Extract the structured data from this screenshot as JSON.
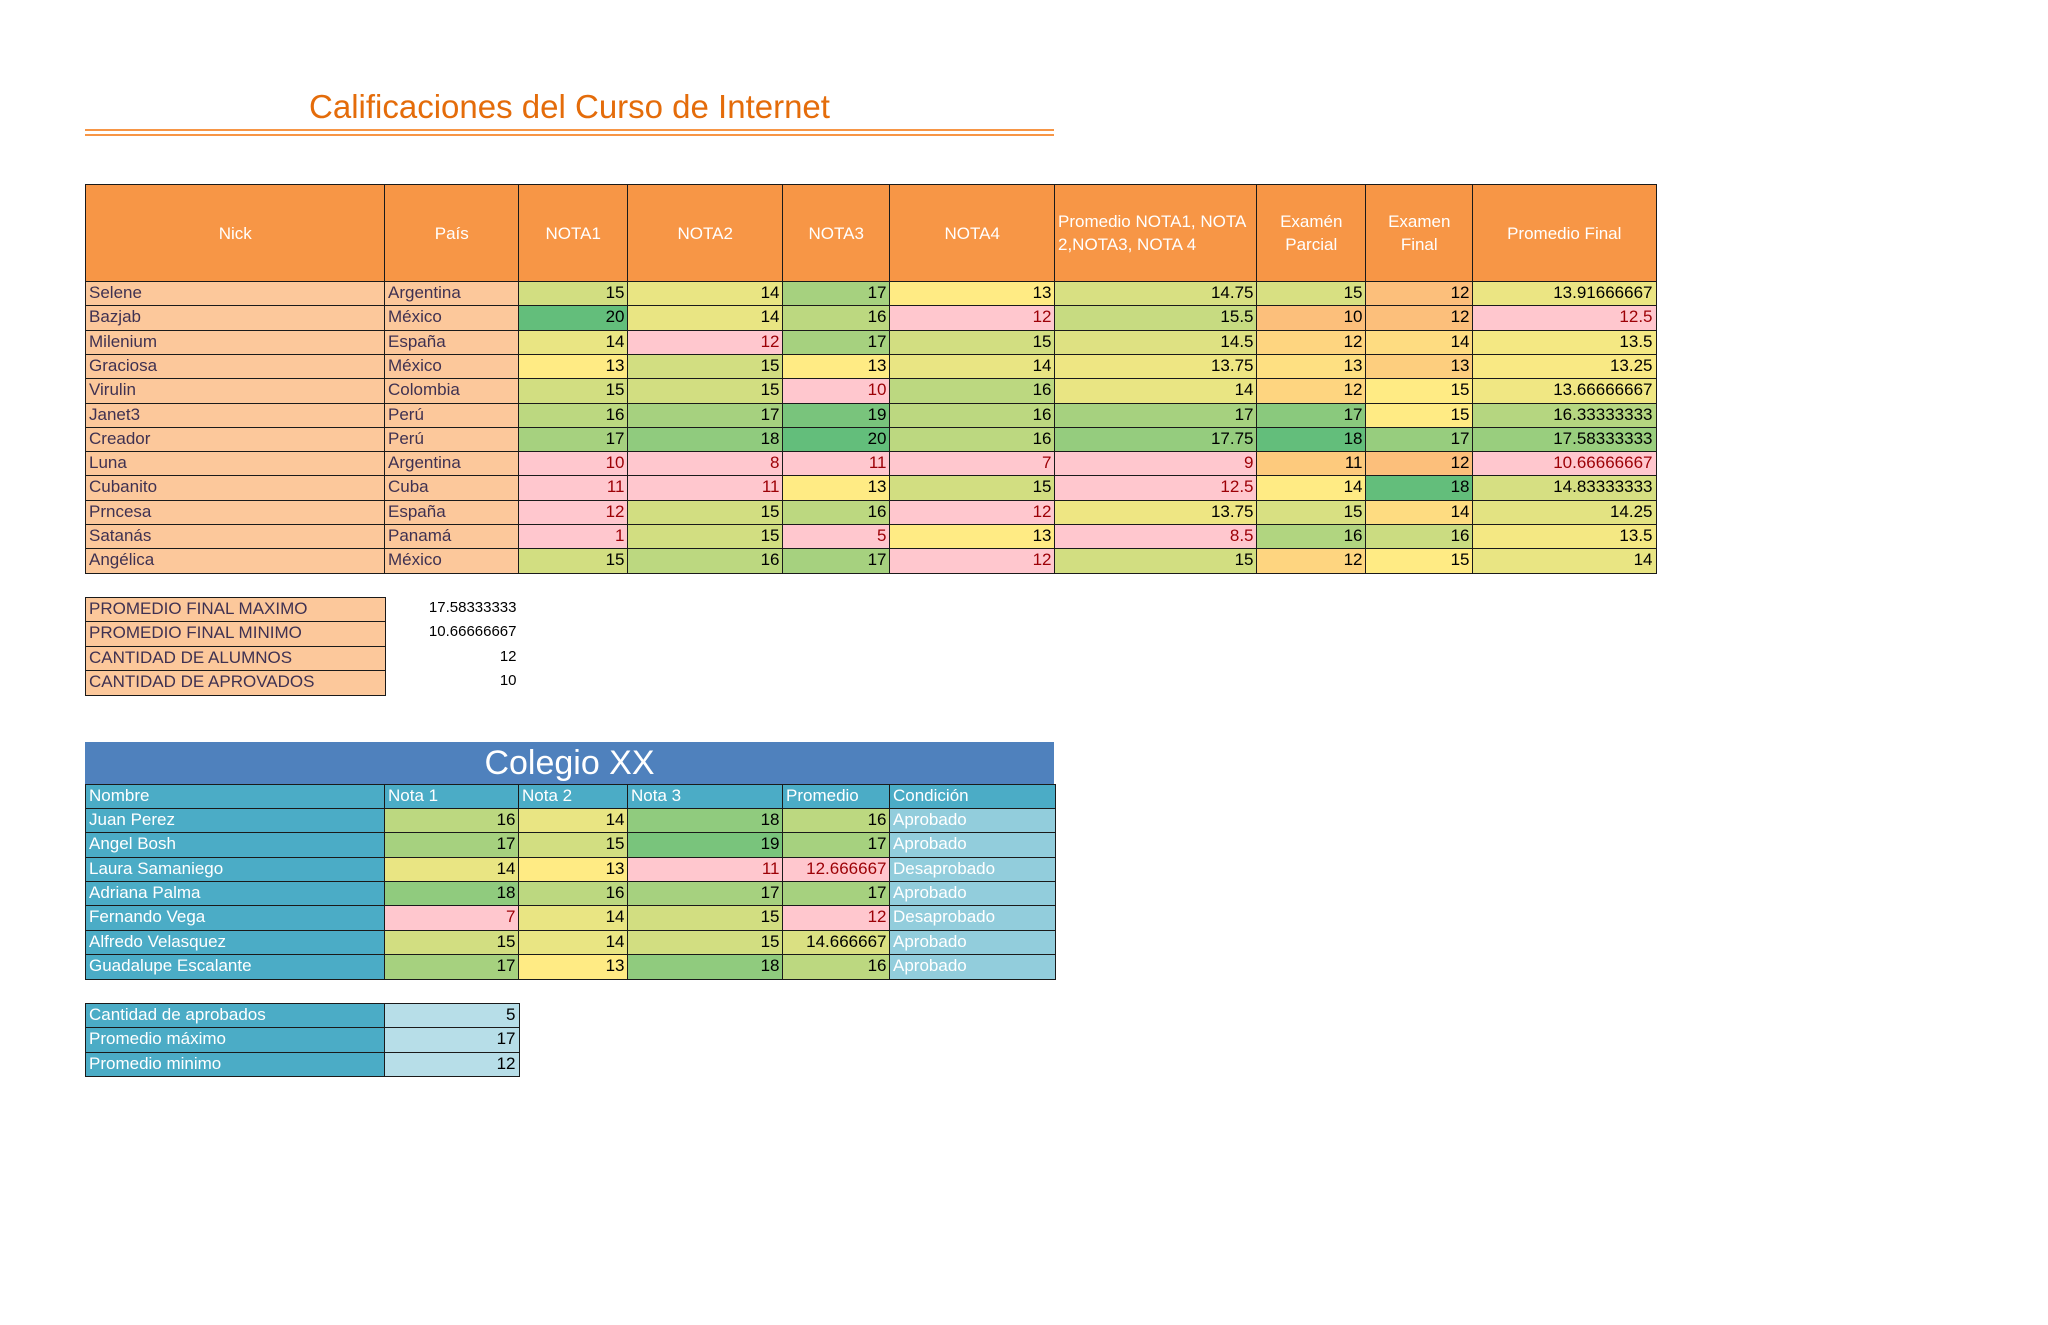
{
  "title": "Calificaciones del Curso de Internet",
  "grades": {
    "headers": [
      "Nick",
      "País",
      "NOTA1",
      "NOTA2",
      "NOTA3",
      "NOTA4",
      "Promedio NOTA1, NOTA 2,NOTA3, NOTA 4",
      "Examén Parcial",
      "Examen Final",
      "Promedio Final"
    ],
    "rows": [
      [
        "Selene",
        "Argentina",
        15,
        14,
        17,
        13,
        14.75,
        15,
        12,
        13.91666667
      ],
      [
        "Bazjab",
        "México",
        20,
        14,
        16,
        12,
        15.5,
        10,
        12,
        12.5
      ],
      [
        "Milenium",
        "España",
        14,
        12,
        17,
        15,
        14.5,
        12,
        14,
        13.5
      ],
      [
        "Graciosa",
        "México",
        13,
        15,
        13,
        14,
        13.75,
        13,
        13,
        13.25
      ],
      [
        "Virulin",
        "Colombia",
        15,
        15,
        10,
        16,
        14,
        12,
        15,
        13.66666667
      ],
      [
        "Janet3",
        "Perú",
        16,
        17,
        19,
        16,
        17,
        17,
        15,
        16.33333333
      ],
      [
        "Creador",
        "Perú",
        17,
        18,
        20,
        16,
        17.75,
        18,
        17,
        17.58333333
      ],
      [
        "Luna",
        "Argentina",
        10,
        8,
        11,
        7,
        9,
        11,
        12,
        10.66666667
      ],
      [
        "Cubanito",
        "Cuba",
        11,
        11,
        13,
        15,
        12.5,
        14,
        18,
        14.83333333
      ],
      [
        "Prncesa",
        "España",
        12,
        15,
        16,
        12,
        13.75,
        15,
        14,
        14.25
      ],
      [
        "Satanás",
        "Panamá",
        1,
        15,
        5,
        13,
        8.5,
        16,
        16,
        13.5
      ],
      [
        "Angélica",
        "México",
        15,
        16,
        17,
        12,
        15,
        12,
        15,
        14
      ]
    ]
  },
  "summary": [
    {
      "label": "PROMEDIO FINAL MAXIMO",
      "value": 17.58333333
    },
    {
      "label": "PROMEDIO FINAL MINIMO",
      "value": 10.66666667
    },
    {
      "label": "CANTIDAD DE ALUMNOS",
      "value": 12
    },
    {
      "label": "CANTIDAD DE APROVADOS",
      "value": 10
    }
  ],
  "colegio": {
    "title": "Colegio XX",
    "headers": [
      "Nombre",
      "Nota 1",
      "Nota 2",
      "Nota 3",
      "Promedio",
      "Condición"
    ],
    "rows": [
      [
        "Juan Perez",
        16,
        14,
        18,
        16,
        "Aprobado"
      ],
      [
        "Angel Bosh",
        17,
        15,
        19,
        17,
        "Aprobado"
      ],
      [
        "Laura Samaniego",
        14,
        13,
        11,
        12.666667,
        "Desaprobado"
      ],
      [
        "Adriana Palma",
        18,
        16,
        17,
        17,
        "Aprobado"
      ],
      [
        "Fernando Vega",
        7,
        14,
        15,
        12,
        "Desaprobado"
      ],
      [
        "Alfredo Velasquez",
        15,
        14,
        15,
        14.666667,
        "Aprobado"
      ],
      [
        "Guadalupe Escalante",
        17,
        13,
        18,
        16,
        "Aprobado"
      ]
    ]
  },
  "colegio_summary": [
    {
      "label": "Cantidad de aprobados",
      "value": 5
    },
    {
      "label": "Promedio máximo",
      "value": 17
    },
    {
      "label": "Promedio minimo",
      "value": 12
    }
  ]
}
